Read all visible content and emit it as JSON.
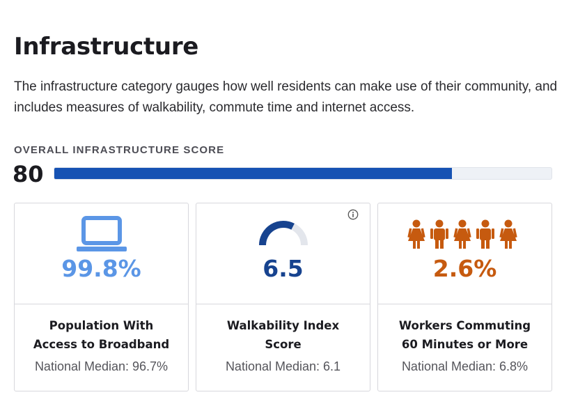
{
  "page": {
    "title": "Infrastructure",
    "description": "The infrastructure category gauges how well residents can make use of their community, and includes measures of walkability, commute time and internet access."
  },
  "overall": {
    "label": "OVERALL INFRASTRUCTURE SCORE",
    "score": "80",
    "score_fraction": 0.8
  },
  "cards": [
    {
      "value": "99.8%",
      "title_line1": "Population With",
      "title_line2": "Access to Broadband",
      "median": "National Median: 96.7%",
      "color": "#5b96e6",
      "icon": "laptop-icon"
    },
    {
      "value": "6.5",
      "title_line1": "Walkability Index",
      "title_line2": "Score",
      "median": "National Median: 6.1",
      "color": "#17438f",
      "icon": "gauge-icon",
      "gauge_fraction": 0.65,
      "info_icon": "info-icon"
    },
    {
      "value": "2.6%",
      "title_line1": "Workers Commuting",
      "title_line2": "60 Minutes or More",
      "median": "National Median: 6.8%",
      "color": "#c65a0f",
      "icon": "people-icon"
    }
  ],
  "colors": {
    "bar_fill": "#1652b3",
    "bar_track": "#eef1f6",
    "gauge_track": "#e3e6ec"
  }
}
